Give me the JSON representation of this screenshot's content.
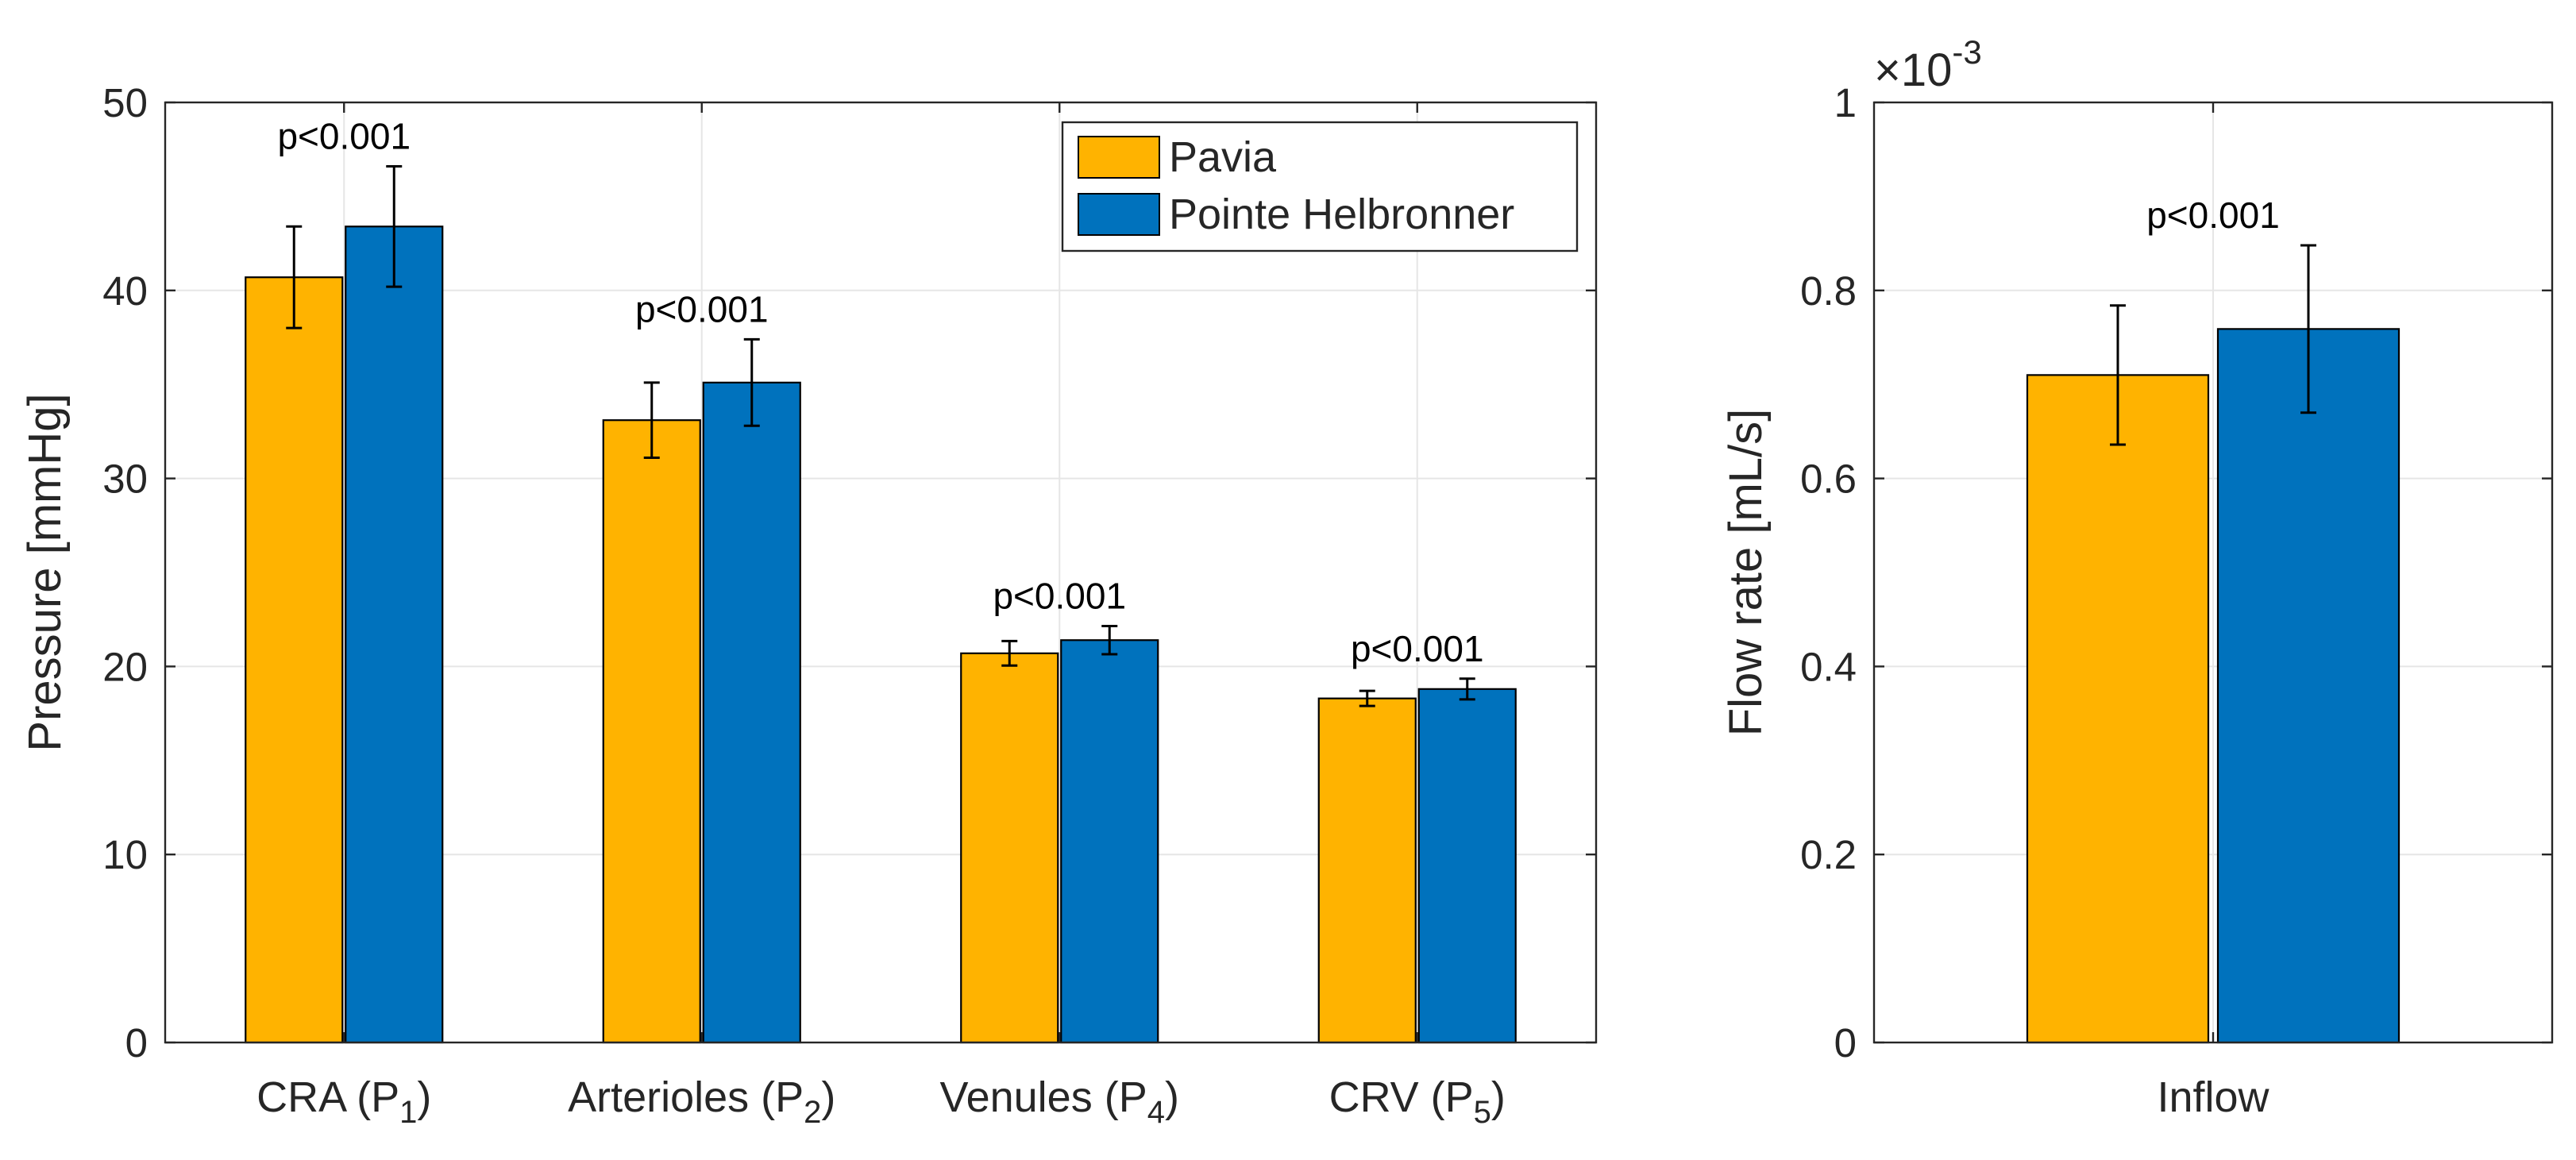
{
  "colors": {
    "pavia": "#FFB300",
    "pointe": "#0072BD",
    "axis": "#262626",
    "grid": "#E6E6E6"
  },
  "chart_data": [
    {
      "type": "bar",
      "ylabel": "Pressure [mmHg]",
      "ylim": [
        0,
        50
      ],
      "yticks": [
        0,
        10,
        20,
        30,
        40,
        50
      ],
      "grid": true,
      "legend_position": "top-right",
      "categories": [
        {
          "main": "CRA (P",
          "sub": "1",
          "end": ")"
        },
        {
          "main": "Arterioles (P",
          "sub": "2",
          "end": ")"
        },
        {
          "main": "Venules (P",
          "sub": "4",
          "end": ")"
        },
        {
          "main": "CRV (P",
          "sub": "5",
          "end": ")"
        }
      ],
      "series": [
        {
          "name": "Pavia",
          "values": [
            40.7,
            33.1,
            20.7,
            18.3
          ],
          "errors": [
            2.7,
            2.0,
            0.65,
            0.4
          ]
        },
        {
          "name": "Pointe Helbronner",
          "values": [
            43.4,
            35.1,
            21.4,
            18.8
          ],
          "errors": [
            3.2,
            2.3,
            0.75,
            0.55
          ]
        }
      ],
      "annotations": [
        "p<0.001",
        "p<0.001",
        "p<0.001",
        "p<0.001"
      ]
    },
    {
      "type": "bar",
      "ylabel": "Flow rate [mL/s]",
      "ylim": [
        0,
        1
      ],
      "yticks": [
        0,
        0.2,
        0.4,
        0.6,
        0.8,
        1
      ],
      "ytick_labels": [
        "0",
        "0.2",
        "0.4",
        "0.6",
        "0.8",
        "1"
      ],
      "exponent": {
        "base": "×10",
        "power": "-3"
      },
      "grid": true,
      "categories": [
        "Inflow"
      ],
      "series": [
        {
          "name": "Pavia",
          "values": [
            0.71
          ],
          "errors": [
            0.074
          ]
        },
        {
          "name": "Pointe Helbronner",
          "values": [
            0.759
          ],
          "errors": [
            0.089
          ]
        }
      ],
      "annotations": [
        "p<0.001"
      ]
    }
  ]
}
